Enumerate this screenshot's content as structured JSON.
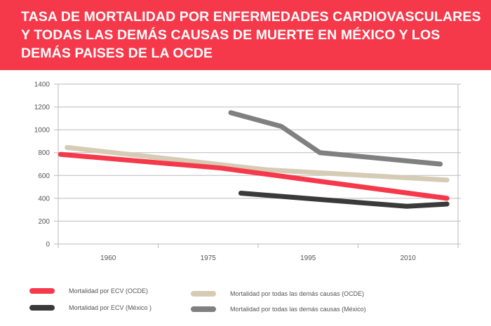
{
  "header": {
    "title": "TASA DE MORTALIDAD POR ENFERMEDADES CARDIOVASCULARES Y TODAS LAS DEMÁS CAUSAS DE MUERTE EN MÉXICO Y LOS DEMÁS PAISES DE LA OCDE"
  },
  "chart_data": {
    "type": "line",
    "title": "TASA DE MORTALIDAD POR ENFERMEDADES CARDIOVASCULARES Y TODAS LAS DEMÁS CAUSAS DE MUERTE EN MÉXICO Y LOS DEMÁS PAISES DE LA OCDE",
    "xlabel": "",
    "ylabel": "",
    "x_tick_labels": [
      "1960",
      "1975",
      "1995",
      "2010"
    ],
    "y_ticks": [
      0,
      200,
      400,
      600,
      800,
      1000,
      1200,
      1400
    ],
    "ylim": [
      0,
      1400
    ],
    "grid": "horizontal",
    "legend_placement": "bottom",
    "series": [
      {
        "name": "Mortalidad por ECV  (OCDE)",
        "color": "#f5394b",
        "points": [
          [
            1953,
            785
          ],
          [
            1978,
            665
          ],
          [
            2016,
            400
          ]
        ]
      },
      {
        "name": "Mortalidad por ECV  (México )",
        "color": "#3a3a3a",
        "points": [
          [
            1982,
            445
          ],
          [
            1997,
            390
          ],
          [
            2010,
            330
          ],
          [
            2016,
            350
          ]
        ]
      },
      {
        "name": "Mortalidad por todas las demás causas (OCDE)",
        "color": "#d6ccb6",
        "points": [
          [
            1954,
            845
          ],
          [
            1976,
            705
          ],
          [
            1987,
            650
          ],
          [
            2016,
            560
          ]
        ]
      },
      {
        "name": "Mortalidad por todas las demás causas (México)",
        "color": "#808080",
        "points": [
          [
            1980,
            1150
          ],
          [
            1990,
            1030
          ],
          [
            1997,
            800
          ],
          [
            2015,
            700
          ]
        ]
      }
    ]
  }
}
